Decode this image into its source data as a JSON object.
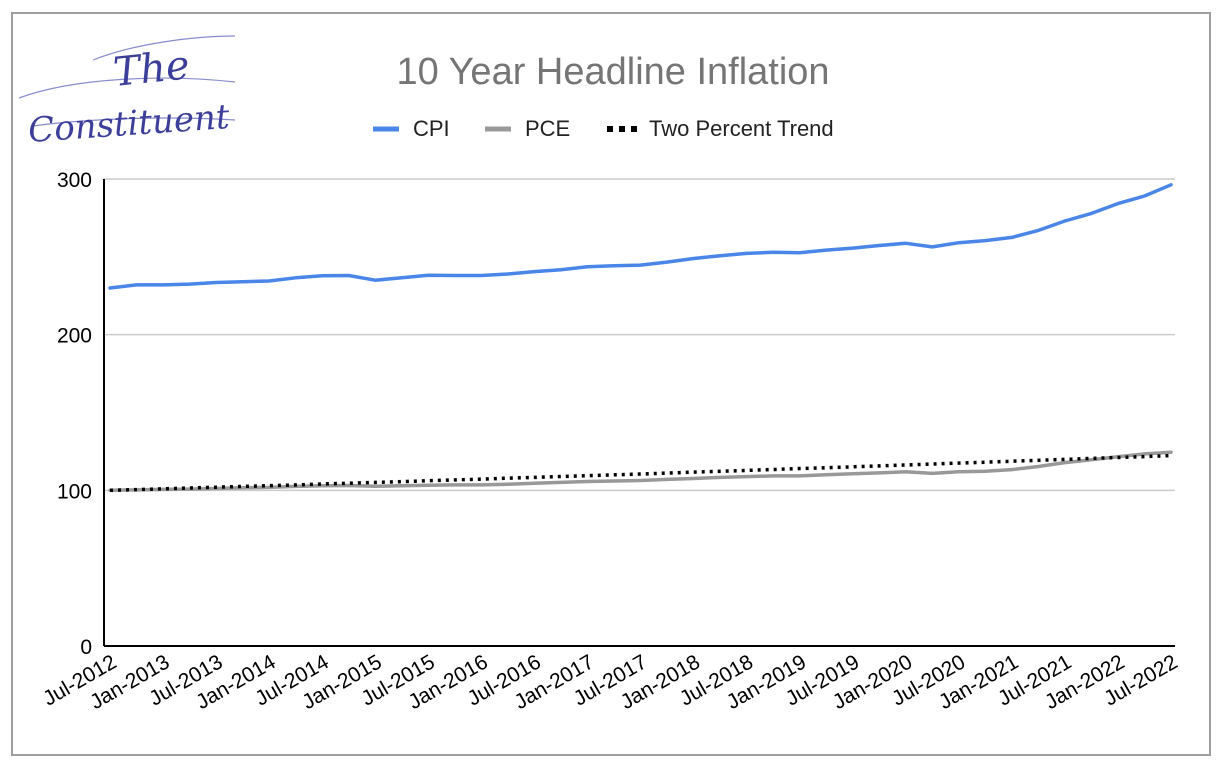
{
  "logo": {
    "line1": "The",
    "line2": "Constituent"
  },
  "colors": {
    "cpi": "#4a86e8",
    "pce": "#999999",
    "trend": "#000000",
    "grid": "#cccccc",
    "axis": "#000000"
  },
  "chart_data": {
    "type": "line",
    "title": "10 Year Headline Inflation",
    "xlabel": "",
    "ylabel": "",
    "ylim": [
      0,
      300
    ],
    "yticks": [
      0,
      100,
      200,
      300
    ],
    "grid": true,
    "legend_position": "top",
    "x_tick_labels": [
      "Jul-2012",
      "Jan-2013",
      "Jul-2013",
      "Jan-2014",
      "Jul-2014",
      "Jan-2015",
      "Jul-2015",
      "Jan-2016",
      "Jul-2016",
      "Jan-2017",
      "Jul-2017",
      "Jan-2018",
      "Jul-2018",
      "Jan-2019",
      "Jul-2019",
      "Jan-2020",
      "Jul-2020",
      "Jan-2021",
      "Jul-2021",
      "Jan-2022",
      "Jul-2022"
    ],
    "x": [
      "Jul-2012",
      "Oct-2012",
      "Jan-2013",
      "Apr-2013",
      "Jul-2013",
      "Oct-2013",
      "Jan-2014",
      "Apr-2014",
      "Jul-2014",
      "Oct-2014",
      "Jan-2015",
      "Apr-2015",
      "Jul-2015",
      "Oct-2015",
      "Jan-2016",
      "Apr-2016",
      "Jul-2016",
      "Oct-2016",
      "Jan-2017",
      "Apr-2017",
      "Jul-2017",
      "Oct-2017",
      "Jan-2018",
      "Apr-2018",
      "Jul-2018",
      "Oct-2018",
      "Jan-2019",
      "Apr-2019",
      "Jul-2019",
      "Oct-2019",
      "Jan-2020",
      "Apr-2020",
      "Jul-2020",
      "Oct-2020",
      "Jan-2021",
      "Apr-2021",
      "Jul-2021",
      "Oct-2021",
      "Jan-2022",
      "Apr-2022",
      "Jul-2022"
    ],
    "series": [
      {
        "name": "CPI",
        "values": [
          230,
          232,
          232,
          232.5,
          233.5,
          234,
          234.5,
          236.5,
          237.8,
          238,
          235,
          236.5,
          238.2,
          238,
          238,
          239,
          240.5,
          241.7,
          243.6,
          244.3,
          244.7,
          246.6,
          248.9,
          250.7,
          252.2,
          252.9,
          252.6,
          254.3,
          255.6,
          257.3,
          258.7,
          256.4,
          259.1,
          260.4,
          262.5,
          267,
          273,
          277.9,
          284.2,
          289.1,
          296.3
        ]
      },
      {
        "name": "PCE",
        "values": [
          100,
          100.3,
          100.6,
          100.8,
          101.2,
          101.6,
          101.9,
          102.5,
          102.9,
          103.1,
          102.6,
          103.0,
          103.3,
          103.5,
          103.5,
          103.9,
          104.5,
          105.1,
          105.7,
          106.0,
          106.3,
          107.0,
          107.6,
          108.3,
          108.8,
          109.3,
          109.3,
          110.0,
          110.7,
          111.2,
          111.9,
          110.9,
          112.0,
          112.3,
          113.3,
          115.3,
          117.8,
          119.6,
          121.6,
          123.4,
          124.5
        ]
      },
      {
        "name": "Two Percent Trend",
        "values": [
          100,
          100.5,
          101,
          101.5,
          102,
          102.5,
          103,
          103.5,
          104.1,
          104.6,
          105.1,
          105.6,
          106.2,
          106.7,
          107.2,
          107.8,
          108.3,
          108.9,
          109.4,
          110.0,
          110.5,
          111.1,
          111.7,
          112.2,
          112.8,
          113.4,
          114.0,
          114.5,
          115.1,
          115.7,
          116.3,
          116.9,
          117.5,
          118.1,
          118.7,
          119.3,
          119.9,
          120.5,
          121.1,
          121.7,
          122.3
        ]
      }
    ]
  }
}
